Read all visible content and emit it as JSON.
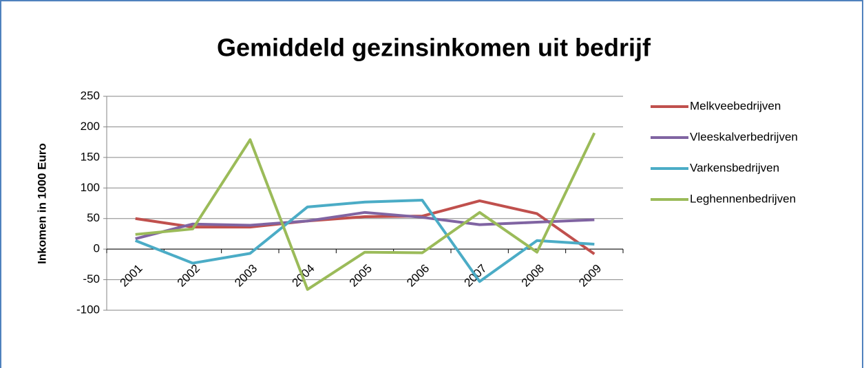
{
  "chart_data": {
    "type": "line",
    "title": "Gemiddeld gezinsinkomen uit bedrijf",
    "y_label": "Inkomen in 1000 Euro",
    "categories": [
      "2001",
      "2002",
      "2003",
      "2004",
      "2005",
      "2006",
      "2007",
      "2008",
      "2009"
    ],
    "series": [
      {
        "name": "Melkveebedrijven",
        "color": "#c0504d",
        "values": [
          50,
          36,
          36,
          46,
          53,
          54,
          79,
          58,
          -8
        ]
      },
      {
        "name": "Vleeskalverbedrijven",
        "color": "#8064a2",
        "values": [
          17,
          41,
          39,
          46,
          60,
          52,
          40,
          44,
          48
        ]
      },
      {
        "name": "Varkensbedrijven",
        "color": "#4bacc6",
        "values": [
          14,
          -23,
          -7,
          69,
          77,
          80,
          -53,
          14,
          8
        ]
      },
      {
        "name": "Leghennenbedrijven",
        "color": "#9bbb59",
        "values": [
          24,
          33,
          179,
          -66,
          -5,
          -6,
          60,
          -5,
          190
        ]
      }
    ],
    "ylim": [
      -100,
      250
    ],
    "yticks": [
      -100,
      -50,
      0,
      50,
      100,
      150,
      200,
      250
    ],
    "grid": true,
    "legend": "right"
  }
}
